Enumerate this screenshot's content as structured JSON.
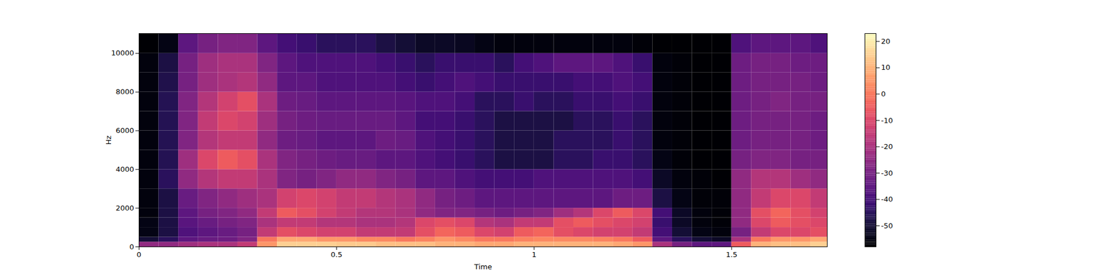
{
  "chart_data": {
    "type": "heatmap",
    "x_label": "Time",
    "y_label": "Hz",
    "xlim": [
      0,
      1.742
    ],
    "xticks": [
      0,
      0.5,
      1,
      1.5
    ],
    "ylim": [
      0,
      11025
    ],
    "yticks": [
      0,
      2000,
      4000,
      6000,
      8000,
      10000
    ],
    "color": "magma",
    "time_edges": [
      0,
      0.05,
      0.1,
      0.15,
      0.2,
      0.25,
      0.3,
      0.35,
      0.4,
      0.45,
      0.5,
      0.55,
      0.6,
      0.65,
      0.7,
      0.75,
      0.8,
      0.85,
      0.9,
      0.95,
      1.0,
      1.05,
      1.1,
      1.15,
      1.2,
      1.25,
      1.3,
      1.35,
      1.4,
      1.45,
      1.5,
      1.55,
      1.6,
      1.65,
      1.7,
      1.742
    ],
    "freq_edges": [
      0,
      250,
      500,
      1000,
      1500,
      2000,
      3000,
      4000,
      5000,
      6000,
      7000,
      8000,
      9000,
      10000,
      11025
    ],
    "cells": [
      [
        -25,
        -50,
        -55,
        -55,
        -56,
        -56,
        -56,
        -56,
        -56,
        -56,
        -56,
        -56,
        -56,
        -58
      ],
      [
        -25,
        -45,
        -48,
        -48,
        -48,
        -48,
        -45,
        -46,
        -46,
        -46,
        -46,
        -47,
        -48,
        -55
      ],
      [
        -22,
        -35,
        -38,
        -36,
        -35,
        -33,
        -25,
        -22,
        -28,
        -28,
        -28,
        -30,
        -30,
        -35
      ],
      [
        -20,
        -33,
        -35,
        -33,
        -30,
        -28,
        -18,
        -10,
        -18,
        -15,
        -18,
        -22,
        -22,
        -30
      ],
      [
        -20,
        -32,
        -33,
        -30,
        -28,
        -25,
        -15,
        -5,
        -15,
        -10,
        -12,
        -20,
        -20,
        -28
      ],
      [
        -15,
        -28,
        -30,
        -28,
        -25,
        -22,
        -15,
        -8,
        -15,
        -12,
        -8,
        -18,
        -20,
        -28
      ],
      [
        5,
        0,
        -15,
        -20,
        -15,
        -20,
        -20,
        -20,
        -25,
        -22,
        -20,
        -25,
        -28,
        -35
      ],
      [
        15,
        8,
        -8,
        -15,
        -5,
        -12,
        -28,
        -28,
        -32,
        -30,
        -32,
        -35,
        -35,
        -40
      ],
      [
        15,
        8,
        -10,
        -15,
        -8,
        -10,
        -30,
        -30,
        -33,
        -32,
        -33,
        -35,
        -38,
        -42
      ],
      [
        15,
        5,
        -12,
        -18,
        -12,
        -12,
        -28,
        -32,
        -35,
        -33,
        -35,
        -38,
        -38,
        -45
      ],
      [
        14,
        5,
        -12,
        -18,
        -15,
        -15,
        -25,
        -33,
        -35,
        -33,
        -35,
        -38,
        -38,
        -45
      ],
      [
        14,
        3,
        -15,
        -20,
        -18,
        -15,
        -25,
        -33,
        -35,
        -33,
        -35,
        -38,
        -38,
        -45
      ],
      [
        12,
        3,
        -15,
        -20,
        -18,
        -18,
        -28,
        -35,
        -32,
        -33,
        -35,
        -38,
        -40,
        -48
      ],
      [
        12,
        0,
        -15,
        -18,
        -20,
        -20,
        -30,
        -35,
        -33,
        -35,
        -36,
        -40,
        -42,
        -50
      ],
      [
        12,
        2,
        -8,
        -10,
        -25,
        -25,
        -35,
        -38,
        -38,
        -40,
        -38,
        -42,
        -45,
        -52
      ],
      [
        10,
        5,
        -3,
        -8,
        -28,
        -30,
        -35,
        -40,
        -40,
        -40,
        -38,
        -40,
        -42,
        -52
      ],
      [
        10,
        3,
        -5,
        -10,
        -28,
        -32,
        -38,
        -42,
        -42,
        -42,
        -40,
        -38,
        -42,
        -53
      ],
      [
        8,
        0,
        -10,
        -18,
        -30,
        -35,
        -40,
        -45,
        -45,
        -45,
        -45,
        -40,
        -42,
        -55
      ],
      [
        8,
        0,
        -12,
        -20,
        -32,
        -35,
        -40,
        -48,
        -48,
        -48,
        -45,
        -42,
        -45,
        -56
      ],
      [
        10,
        2,
        -5,
        -15,
        -30,
        -35,
        -40,
        -48,
        -48,
        -48,
        -42,
        -42,
        -40,
        -56
      ],
      [
        10,
        3,
        -3,
        -15,
        -28,
        -35,
        -38,
        -48,
        -48,
        -48,
        -45,
        -42,
        -38,
        -56
      ],
      [
        10,
        3,
        -8,
        -8,
        -22,
        -35,
        -38,
        -45,
        -45,
        -48,
        -45,
        -42,
        -35,
        -56
      ],
      [
        10,
        3,
        -10,
        -5,
        -18,
        -35,
        -38,
        -45,
        -45,
        -45,
        -42,
        -40,
        -35,
        -56
      ],
      [
        10,
        2,
        -12,
        -8,
        -10,
        -35,
        -38,
        -42,
        -45,
        -45,
        -42,
        -40,
        -35,
        -56
      ],
      [
        8,
        0,
        -12,
        -10,
        -5,
        -32,
        -38,
        -42,
        -42,
        -42,
        -40,
        -38,
        -38,
        -56
      ],
      [
        5,
        -5,
        -15,
        -12,
        -10,
        -32,
        -40,
        -45,
        -45,
        -45,
        -42,
        -40,
        -42,
        -57
      ],
      [
        -20,
        -35,
        -40,
        -42,
        -40,
        -48,
        -52,
        -55,
        -56,
        -56,
        -56,
        -56,
        -56,
        -58
      ],
      [
        -30,
        -45,
        -50,
        -52,
        -52,
        -55,
        -56,
        -57,
        -57,
        -57,
        -57,
        -57,
        -57,
        -58
      ],
      [
        -35,
        -50,
        -55,
        -56,
        -56,
        -57,
        -57,
        -58,
        -58,
        -58,
        -58,
        -58,
        -58,
        -58
      ],
      [
        -35,
        -52,
        -56,
        -57,
        -57,
        -57,
        -58,
        -58,
        -58,
        -58,
        -58,
        -58,
        -58,
        -58
      ],
      [
        -5,
        -20,
        -30,
        -25,
        -25,
        -25,
        -25,
        -30,
        -32,
        -32,
        -32,
        -32,
        -32,
        -38
      ],
      [
        10,
        0,
        -15,
        -10,
        -8,
        -15,
        -18,
        -28,
        -30,
        -30,
        -30,
        -30,
        -30,
        -35
      ],
      [
        12,
        5,
        -10,
        -5,
        -3,
        -10,
        -18,
        -28,
        -30,
        -30,
        -28,
        -30,
        -30,
        -35
      ],
      [
        12,
        5,
        -10,
        -8,
        -8,
        -10,
        -22,
        -30,
        -30,
        -30,
        -30,
        -30,
        -32,
        -35
      ],
      [
        15,
        8,
        -8,
        -10,
        -12,
        -15,
        -25,
        -30,
        -32,
        -32,
        -30,
        -32,
        -32,
        -38
      ]
    ],
    "colorbar": {
      "range": [
        -58,
        23
      ],
      "ticks": [
        -50,
        -40,
        -30,
        -20,
        -10,
        0,
        10,
        20
      ]
    }
  }
}
